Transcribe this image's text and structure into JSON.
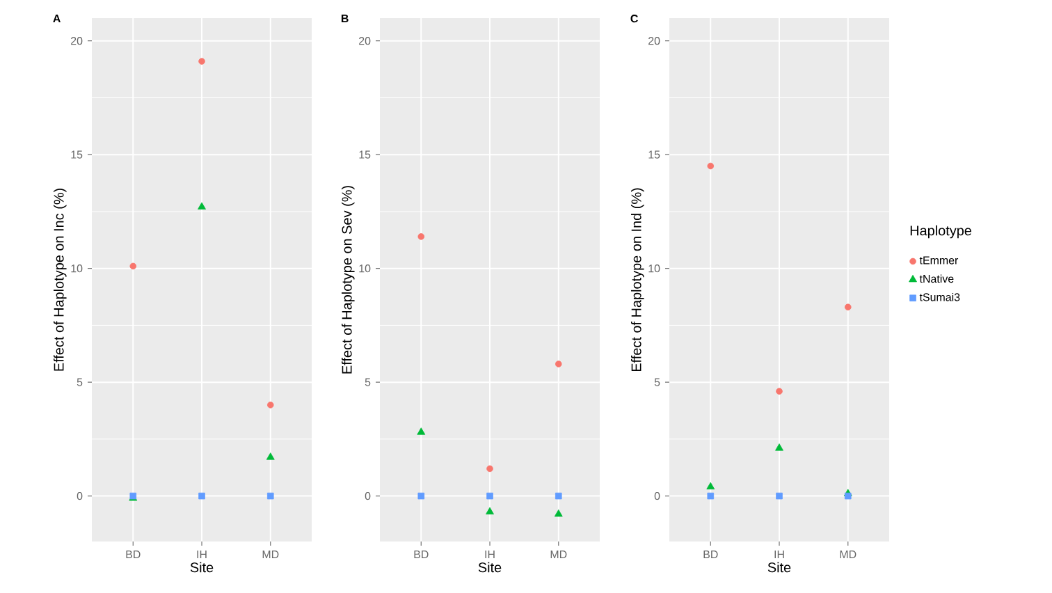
{
  "chart_data": [
    {
      "type": "scatter",
      "title": "A",
      "xlabel": "Site",
      "ylabel": "Effect of Haplotype on Inc (%)",
      "categories": [
        "BD",
        "IH",
        "MD"
      ],
      "ylim": [
        -2,
        21
      ],
      "yticks": [
        0,
        5,
        10,
        15,
        20
      ],
      "grid": true,
      "legend": false,
      "series": [
        {
          "color": "#f8766d",
          "marker": "circle",
          "values": [
            10.1,
            19.1,
            4.0
          ]
        },
        {
          "color": "#00ba38",
          "marker": "triangle",
          "values": [
            -0.1,
            12.7,
            1.7
          ]
        },
        {
          "color": "#619cff",
          "marker": "square",
          "values": [
            0,
            0,
            0
          ]
        }
      ]
    },
    {
      "type": "scatter",
      "title": "B",
      "xlabel": "Site",
      "ylabel": "Effect of Haplotype on Sev (%)",
      "categories": [
        "BD",
        "IH",
        "MD"
      ],
      "ylim": [
        -2,
        21
      ],
      "yticks": [
        0,
        5,
        10,
        15,
        20
      ],
      "grid": true,
      "legend": false,
      "series": [
        {
          "color": "#f8766d",
          "marker": "circle",
          "values": [
            11.4,
            1.2,
            5.8
          ]
        },
        {
          "color": "#00ba38",
          "marker": "triangle",
          "values": [
            2.8,
            -0.7,
            -0.8
          ]
        },
        {
          "color": "#619cff",
          "marker": "square",
          "values": [
            0,
            0,
            0
          ]
        }
      ]
    },
    {
      "type": "scatter",
      "title": "C",
      "xlabel": "Site",
      "ylabel": "Effect of Haplotype on Ind (%)",
      "categories": [
        "BD",
        "IH",
        "MD"
      ],
      "ylim": [
        -2,
        21
      ],
      "yticks": [
        0,
        5,
        10,
        15,
        20
      ],
      "grid": true,
      "legend": "right",
      "legend_title": "Haplotype",
      "series": [
        {
          "name": "tEmmer",
          "color": "#f8766d",
          "marker": "circle",
          "values": [
            14.5,
            4.6,
            8.3
          ]
        },
        {
          "name": "tNative",
          "color": "#00ba38",
          "marker": "triangle",
          "values": [
            0.4,
            2.1,
            0.1
          ]
        },
        {
          "name": "tSumai3",
          "color": "#619cff",
          "marker": "square",
          "values": [
            0,
            0,
            0
          ]
        }
      ]
    }
  ]
}
